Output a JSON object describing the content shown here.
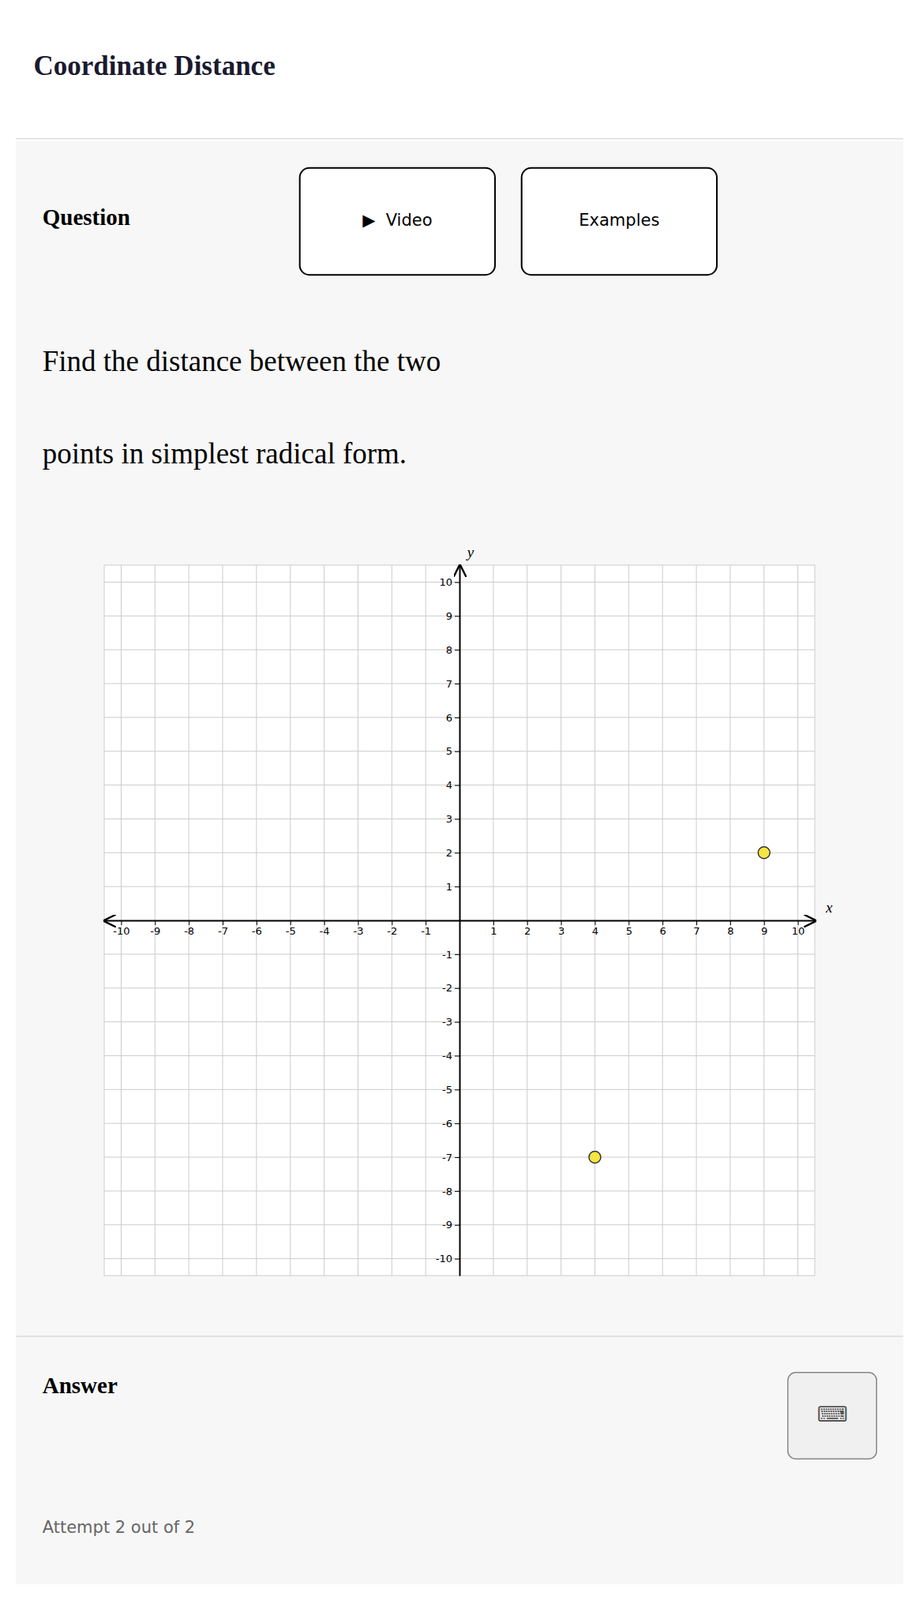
{
  "chart_data": {
    "type": "scatter",
    "title": "Coordinate Distance",
    "x": [
      9,
      4
    ],
    "values": [
      2,
      -7
    ],
    "color": "#f5e642",
    "xlabel": "x",
    "ylabel": "y",
    "xlim": [
      -10.5,
      10.5
    ],
    "ylim": [
      -10.5,
      10.5
    ],
    "xticks": [
      -10,
      -9,
      -8,
      -7,
      -6,
      -5,
      -4,
      -3,
      -2,
      -1,
      1,
      2,
      3,
      4,
      5,
      6,
      7,
      8,
      9,
      10
    ],
    "yticks": [
      -10,
      -9,
      -8,
      -7,
      -6,
      -5,
      -4,
      -3,
      -2,
      -1,
      1,
      2,
      3,
      4,
      5,
      6,
      7,
      8,
      9,
      10
    ],
    "grid": true
  },
  "page": {
    "question_label": "Question",
    "button1": "▶  Video",
    "button2": "Examples",
    "problem_text_line1": "Find the distance between the two",
    "problem_text_line2": "points in simplest radical form.",
    "answer_label": "Answer",
    "keyboard_icon": "⌨",
    "attempt_text": "Attempt 2 out of 2"
  }
}
